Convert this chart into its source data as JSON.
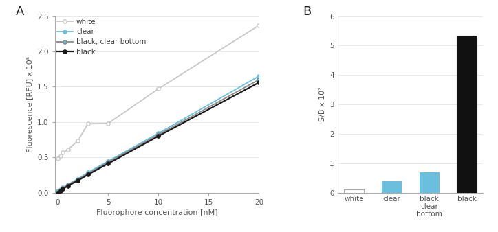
{
  "panel_A": {
    "title": "A",
    "xlabel": "Fluorophore concentration [nM]",
    "ylabel": "Fluorescence [RFU] x 10⁵",
    "xlim": [
      -0.3,
      20
    ],
    "ylim": [
      0,
      2.5
    ],
    "xticks": [
      0,
      5,
      10,
      15,
      20
    ],
    "yticks": [
      0,
      0.5,
      1.0,
      1.5,
      2.0,
      2.5
    ],
    "white_x": [
      0,
      0.25,
      0.5,
      1,
      2,
      3,
      5,
      10,
      20
    ],
    "white_y": [
      0.48,
      0.525,
      0.565,
      0.61,
      0.735,
      0.975,
      0.98,
      1.47,
      2.37
    ],
    "clear_x": [
      0,
      0.25,
      0.5,
      1,
      2,
      3,
      5,
      10,
      20
    ],
    "clear_y": [
      0.02,
      0.04,
      0.07,
      0.115,
      0.195,
      0.285,
      0.445,
      0.84,
      1.65
    ],
    "bcb_x": [
      0,
      0.25,
      0.5,
      1,
      2,
      3,
      5,
      10,
      20
    ],
    "bcb_y": [
      0.01,
      0.035,
      0.065,
      0.11,
      0.185,
      0.27,
      0.43,
      0.82,
      1.6
    ],
    "black_x": [
      0,
      0.25,
      0.5,
      1,
      2,
      3,
      5,
      10,
      20
    ],
    "black_y": [
      0.0,
      0.025,
      0.05,
      0.095,
      0.17,
      0.255,
      0.41,
      0.8,
      1.56
    ]
  },
  "panel_B": {
    "title": "B",
    "ylabel": "S/B x 10²",
    "ylim": [
      0,
      6
    ],
    "yticks": [
      0,
      1,
      2,
      3,
      4,
      5,
      6
    ],
    "categories": [
      "white",
      "clear",
      "black\nclear\nbottom",
      "black"
    ],
    "values": [
      0.11,
      0.38,
      0.68,
      5.33
    ],
    "bar_colors": [
      "white",
      "#6bbfde",
      "#6bbfde",
      "#111111"
    ],
    "bar_edgecolors": [
      "#aaaaaa",
      "#6bbfde",
      "#6bbfde",
      "#111111"
    ]
  }
}
